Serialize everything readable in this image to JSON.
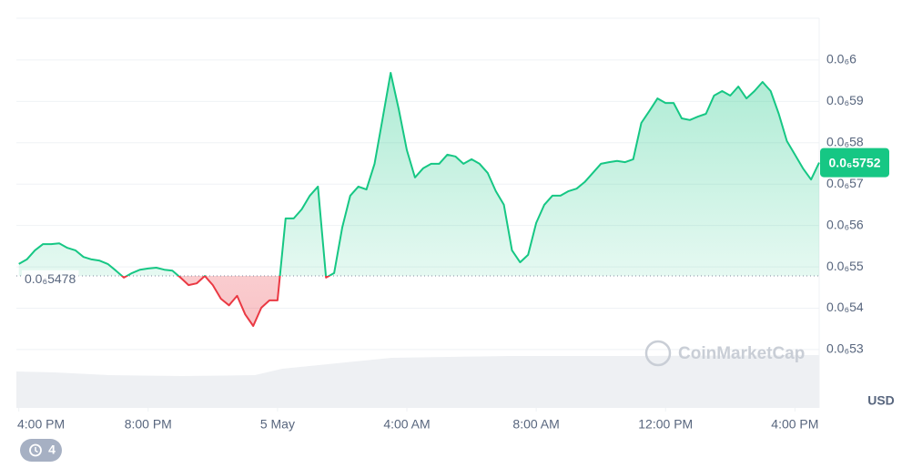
{
  "chart_data": {
    "type": "line",
    "values": [
      5.507e-07,
      5.518e-07,
      5.54e-07,
      5.555e-07,
      5.555e-07,
      5.557e-07,
      5.546e-07,
      5.54e-07,
      5.524e-07,
      5.518e-07,
      5.515e-07,
      5.507e-07,
      5.491e-07,
      5.474e-07,
      5.485e-07,
      5.493e-07,
      5.496e-07,
      5.498e-07,
      5.493e-07,
      5.491e-07,
      5.474e-07,
      5.456e-07,
      5.46e-07,
      5.478e-07,
      5.456e-07,
      5.423e-07,
      5.407e-07,
      5.43e-07,
      5.385e-07,
      5.357e-07,
      5.401e-07,
      5.419e-07,
      5.419e-07,
      5.617e-07,
      5.617e-07,
      5.639e-07,
      5.672e-07,
      5.694e-07,
      5.474e-07,
      5.485e-07,
      5.595e-07,
      5.672e-07,
      5.694e-07,
      5.687e-07,
      5.749e-07,
      5.859e-07,
      5.969e-07,
      5.881e-07,
      5.782e-07,
      5.716e-07,
      5.738e-07,
      5.749e-07,
      5.749e-07,
      5.771e-07,
      5.767e-07,
      5.749e-07,
      5.76e-07,
      5.749e-07,
      5.727e-07,
      5.683e-07,
      5.65e-07,
      5.54e-07,
      5.511e-07,
      5.529e-07,
      5.606e-07,
      5.65e-07,
      5.672e-07,
      5.672e-07,
      5.683e-07,
      5.689e-07,
      5.705e-07,
      5.727e-07,
      5.749e-07,
      5.753e-07,
      5.756e-07,
      5.753e-07,
      5.76e-07,
      5.848e-07,
      5.877e-07,
      5.907e-07,
      5.896e-07,
      5.896e-07,
      5.859e-07,
      5.855e-07,
      5.863e-07,
      5.87e-07,
      5.914e-07,
      5.925e-07,
      5.914e-07,
      5.936e-07,
      5.907e-07,
      5.925e-07,
      5.947e-07,
      5.925e-07,
      5.87e-07,
      5.804e-07,
      5.771e-07,
      5.738e-07,
      5.711e-07,
      5.752e-07
    ],
    "color_up": "#16c784",
    "color_down": "#ea3943",
    "baseline": {
      "value": 5.478e-07,
      "label": "0.0₆5478"
    },
    "current_price": {
      "value": 5.752e-07,
      "label": "0.0₆5752"
    },
    "xlim": [
      -0.3,
      99
    ],
    "xticks": [
      {
        "value": 0,
        "label": "4:00 PM"
      },
      {
        "value": 16,
        "label": "8:00 PM"
      },
      {
        "value": 32,
        "label": "5 May"
      },
      {
        "value": 48,
        "label": "4:00 AM"
      },
      {
        "value": 64,
        "label": "8:00 AM"
      },
      {
        "value": 80,
        "label": "12:00 PM"
      },
      {
        "value": 96,
        "label": "4:00 PM"
      }
    ],
    "ylim": [
      5.159e-07,
      6.101e-07
    ],
    "yticks": [
      {
        "value": 6e-07,
        "label": "0.0₆6"
      },
      {
        "value": 5.9e-07,
        "label": "0.0₆59"
      },
      {
        "value": 5.8e-07,
        "label": "0.0₆58"
      },
      {
        "value": 5.7e-07,
        "label": "0.0₆57"
      },
      {
        "value": 5.6e-07,
        "label": "0.0₆56"
      },
      {
        "value": 5.5e-07,
        "label": "0.0₆55"
      },
      {
        "value": 5.4e-07,
        "label": "0.0₆54"
      },
      {
        "value": 5.3e-07,
        "label": "0.0₆53"
      }
    ],
    "y_axis_label": "USD",
    "grid": true,
    "watermark": "CoinMarketCap",
    "badge": "4"
  }
}
